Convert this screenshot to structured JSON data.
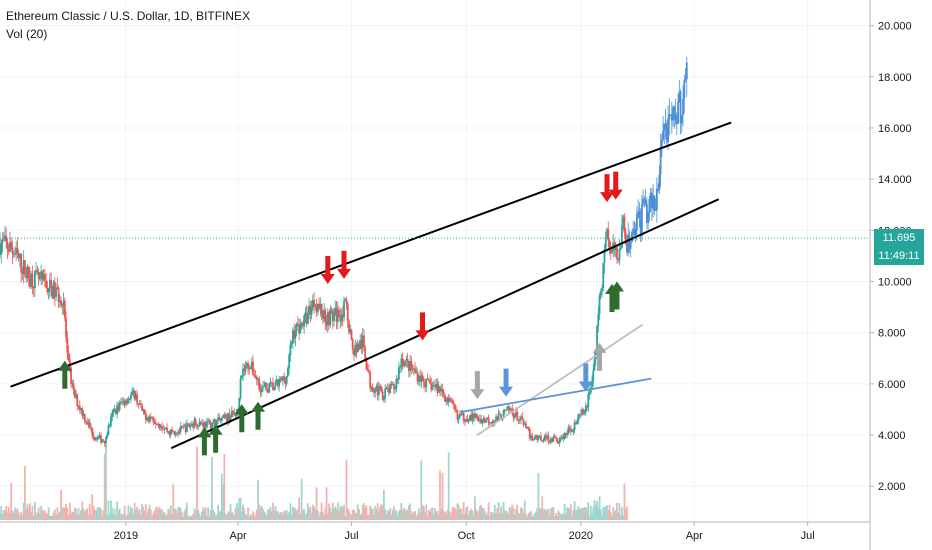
{
  "legend": {
    "title": "Ethereum Classic / U.S. Dollar, 1D, BITFINEX",
    "volume": "Vol (20)"
  },
  "colors": {
    "up": "#26a69a",
    "down": "#ef5350",
    "projection": "#4a8fd6",
    "trendline": "#000000",
    "arrow_green": "#2e6b2e",
    "arrow_red": "#e31a1a",
    "arrow_gray": "#a6a6a6",
    "arrow_blue": "#5b94d8",
    "line_gray": "#bdbdbd",
    "line_blue": "#5b94d8"
  },
  "price_label": {
    "value": "11.695",
    "countdown": "11:49:11"
  },
  "chart_data": {
    "type": "candlestick",
    "xlim": [
      "2018-09-22",
      "2020-08-20"
    ],
    "ylim": [
      0.6,
      21.0
    ],
    "y_ticks": [
      "2.000",
      "4.000",
      "6.000",
      "8.000",
      "10.000",
      "12.000",
      "14.000",
      "16.000",
      "18.000",
      "20.000"
    ],
    "x_ticks": [
      {
        "date": "2019-01-01",
        "label": "2019"
      },
      {
        "date": "2019-04-01",
        "label": "Apr"
      },
      {
        "date": "2019-07-01",
        "label": "Jul"
      },
      {
        "date": "2019-10-01",
        "label": "Oct"
      },
      {
        "date": "2020-01-01",
        "label": "2020"
      },
      {
        "date": "2020-04-01",
        "label": "Apr"
      },
      {
        "date": "2020-07-01",
        "label": "Jul"
      }
    ],
    "current_price": 11.695,
    "price_path": [
      [
        "2018-09-22",
        11.5
      ],
      [
        "2018-10-01",
        11.3
      ],
      [
        "2018-10-15",
        10.2
      ],
      [
        "2018-10-25",
        10.0
      ],
      [
        "2018-11-05",
        9.6
      ],
      [
        "2018-11-12",
        9.3
      ],
      [
        "2018-11-15",
        7.0
      ],
      [
        "2018-11-20",
        5.6
      ],
      [
        "2018-11-28",
        4.8
      ],
      [
        "2018-12-07",
        3.9
      ],
      [
        "2018-12-15",
        3.8
      ],
      [
        "2018-12-22",
        4.9
      ],
      [
        "2019-01-01",
        5.4
      ],
      [
        "2019-01-08",
        5.6
      ],
      [
        "2019-01-15",
        4.8
      ],
      [
        "2019-01-25",
        4.6
      ],
      [
        "2019-02-05",
        4.1
      ],
      [
        "2019-02-15",
        4.2
      ],
      [
        "2019-02-26",
        4.5
      ],
      [
        "2019-03-08",
        4.4
      ],
      [
        "2019-03-20",
        4.6
      ],
      [
        "2019-04-01",
        4.9
      ],
      [
        "2019-04-03",
        6.4
      ],
      [
        "2019-04-10",
        6.8
      ],
      [
        "2019-04-20",
        5.8
      ],
      [
        "2019-05-01",
        5.9
      ],
      [
        "2019-05-10",
        6.3
      ],
      [
        "2019-05-15",
        8.0
      ],
      [
        "2019-05-25",
        8.5
      ],
      [
        "2019-06-01",
        9.3
      ],
      [
        "2019-06-10",
        8.6
      ],
      [
        "2019-06-20",
        8.7
      ],
      [
        "2019-06-27",
        9.0
      ],
      [
        "2019-07-02",
        7.3
      ],
      [
        "2019-07-10",
        7.6
      ],
      [
        "2019-07-16",
        6.0
      ],
      [
        "2019-07-26",
        5.6
      ],
      [
        "2019-08-05",
        5.9
      ],
      [
        "2019-08-10",
        7.0
      ],
      [
        "2019-08-20",
        6.5
      ],
      [
        "2019-08-30",
        6.0
      ],
      [
        "2019-09-10",
        5.8
      ],
      [
        "2019-09-20",
        5.1
      ],
      [
        "2019-09-25",
        4.7
      ],
      [
        "2019-10-05",
        4.7
      ],
      [
        "2019-10-15",
        4.6
      ],
      [
        "2019-10-25",
        4.6
      ],
      [
        "2019-11-05",
        5.0
      ],
      [
        "2019-11-15",
        4.5
      ],
      [
        "2019-11-22",
        3.9
      ],
      [
        "2019-12-01",
        3.9
      ],
      [
        "2019-12-15",
        3.8
      ],
      [
        "2019-12-25",
        4.3
      ],
      [
        "2020-01-05",
        5.0
      ],
      [
        "2020-01-10",
        6.2
      ],
      [
        "2020-01-13",
        7.3
      ],
      [
        "2020-01-15",
        8.8
      ],
      [
        "2020-01-18",
        9.9
      ],
      [
        "2020-01-21",
        12.0
      ],
      [
        "2020-01-25",
        11.2
      ],
      [
        "2020-01-30",
        11.0
      ],
      [
        "2020-02-04",
        12.2
      ],
      [
        "2020-02-07",
        11.695
      ]
    ],
    "projection_path": [
      [
        "2020-02-07",
        11.3
      ],
      [
        "2020-02-12",
        12.0
      ],
      [
        "2020-02-15",
        12.6
      ],
      [
        "2020-02-18",
        12.2
      ],
      [
        "2020-02-20",
        13.3
      ],
      [
        "2020-02-23",
        12.6
      ],
      [
        "2020-02-26",
        13.1
      ],
      [
        "2020-03-01",
        12.8
      ],
      [
        "2020-03-04",
        14.5
      ],
      [
        "2020-03-06",
        15.8
      ],
      [
        "2020-03-09",
        16.0
      ],
      [
        "2020-03-11",
        15.8
      ],
      [
        "2020-03-14",
        16.3
      ],
      [
        "2020-03-16",
        16.1
      ],
      [
        "2020-03-19",
        17.0
      ],
      [
        "2020-03-21",
        16.8
      ],
      [
        "2020-03-24",
        17.6
      ],
      [
        "2020-03-26",
        18.0
      ]
    ],
    "trendlines": [
      {
        "name": "resistance",
        "from": [
          "2018-10-01",
          5.9
        ],
        "to": [
          "2020-04-30",
          16.2
        ]
      },
      {
        "name": "support",
        "from": [
          "2019-02-07",
          3.5
        ],
        "to": [
          "2020-04-20",
          13.2
        ]
      },
      {
        "name": "gray-line",
        "from": [
          "2019-10-10",
          4.0
        ],
        "to": [
          "2020-02-19",
          8.3
        ]
      },
      {
        "name": "blue-line",
        "from": [
          "2019-09-27",
          4.9
        ],
        "to": [
          "2020-02-26",
          6.2
        ]
      }
    ],
    "arrows": [
      {
        "date": "2018-11-13",
        "price": 6.9,
        "dir": "up",
        "color": "green"
      },
      {
        "date": "2019-03-05",
        "price": 4.3,
        "dir": "up",
        "color": "green"
      },
      {
        "date": "2019-03-14",
        "price": 4.4,
        "dir": "up",
        "color": "green"
      },
      {
        "date": "2019-04-04",
        "price": 5.2,
        "dir": "up",
        "color": "green"
      },
      {
        "date": "2019-04-17",
        "price": 5.3,
        "dir": "up",
        "color": "green"
      },
      {
        "date": "2019-06-12",
        "price": 9.9,
        "dir": "down",
        "color": "red"
      },
      {
        "date": "2019-06-25",
        "price": 10.1,
        "dir": "down",
        "color": "red"
      },
      {
        "date": "2019-08-27",
        "price": 7.7,
        "dir": "down",
        "color": "red"
      },
      {
        "date": "2019-10-10",
        "price": 5.4,
        "dir": "down",
        "color": "gray"
      },
      {
        "date": "2019-11-02",
        "price": 5.5,
        "dir": "down",
        "color": "blue"
      },
      {
        "date": "2020-01-05",
        "price": 5.7,
        "dir": "down",
        "color": "blue"
      },
      {
        "date": "2020-01-16",
        "price": 7.6,
        "dir": "up",
        "color": "gray"
      },
      {
        "date": "2020-01-22",
        "price": 13.1,
        "dir": "down",
        "color": "red"
      },
      {
        "date": "2020-01-29",
        "price": 13.2,
        "dir": "down",
        "color": "red"
      },
      {
        "date": "2020-01-26",
        "price": 9.9,
        "dir": "up",
        "color": "green"
      },
      {
        "date": "2020-01-30",
        "price": 10.0,
        "dir": "up",
        "color": "green"
      }
    ]
  }
}
